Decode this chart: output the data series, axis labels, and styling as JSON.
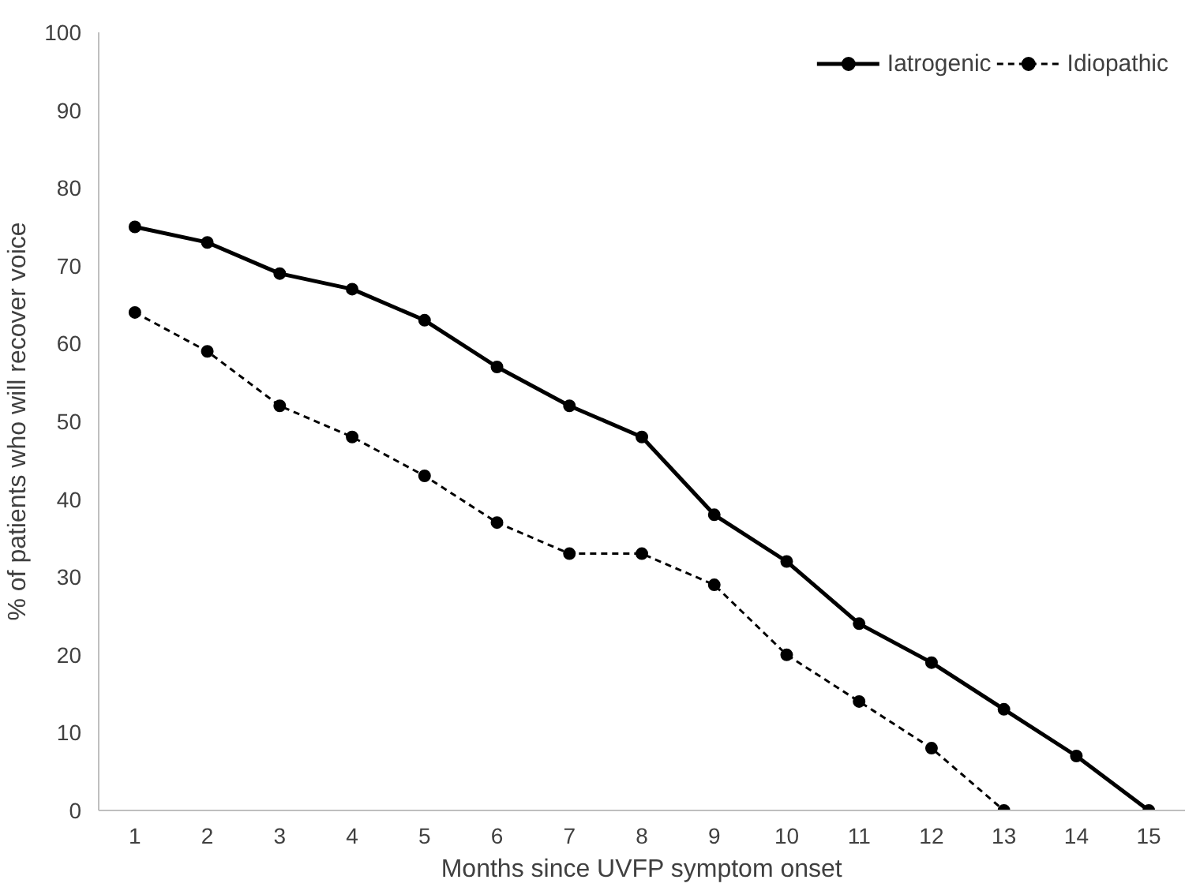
{
  "chart_data": {
    "type": "line",
    "xlabel": "Months since UVFP symptom onset",
    "ylabel": "% of patients who will recover voice",
    "xlim": [
      0.5,
      15.5
    ],
    "xticks": [
      1,
      2,
      3,
      4,
      5,
      6,
      7,
      8,
      9,
      10,
      11,
      12,
      13,
      14,
      15
    ],
    "ylim": [
      0,
      100
    ],
    "yticks": [
      0,
      10,
      20,
      30,
      40,
      50,
      60,
      70,
      80,
      90,
      100
    ],
    "grid": false,
    "legend": "top right",
    "marker": "circle",
    "series": [
      {
        "name": "Iatrogenic",
        "color": "#000000",
        "line_style": "solid",
        "x": [
          1,
          2,
          3,
          4,
          5,
          6,
          7,
          8,
          9,
          10,
          11,
          12,
          13,
          14,
          15
        ],
        "values": [
          75,
          73,
          69,
          67,
          63,
          57,
          52,
          48,
          38,
          32,
          24,
          19,
          13,
          7,
          0
        ]
      },
      {
        "name": "Idiopathic",
        "color": "#000000",
        "line_style": "dashed",
        "x": [
          1,
          2,
          3,
          4,
          5,
          6,
          7,
          8,
          9,
          10,
          11,
          12,
          13
        ],
        "values": [
          64,
          59,
          52,
          48,
          43,
          37,
          33,
          33,
          29,
          20,
          14,
          8,
          0
        ]
      }
    ]
  }
}
